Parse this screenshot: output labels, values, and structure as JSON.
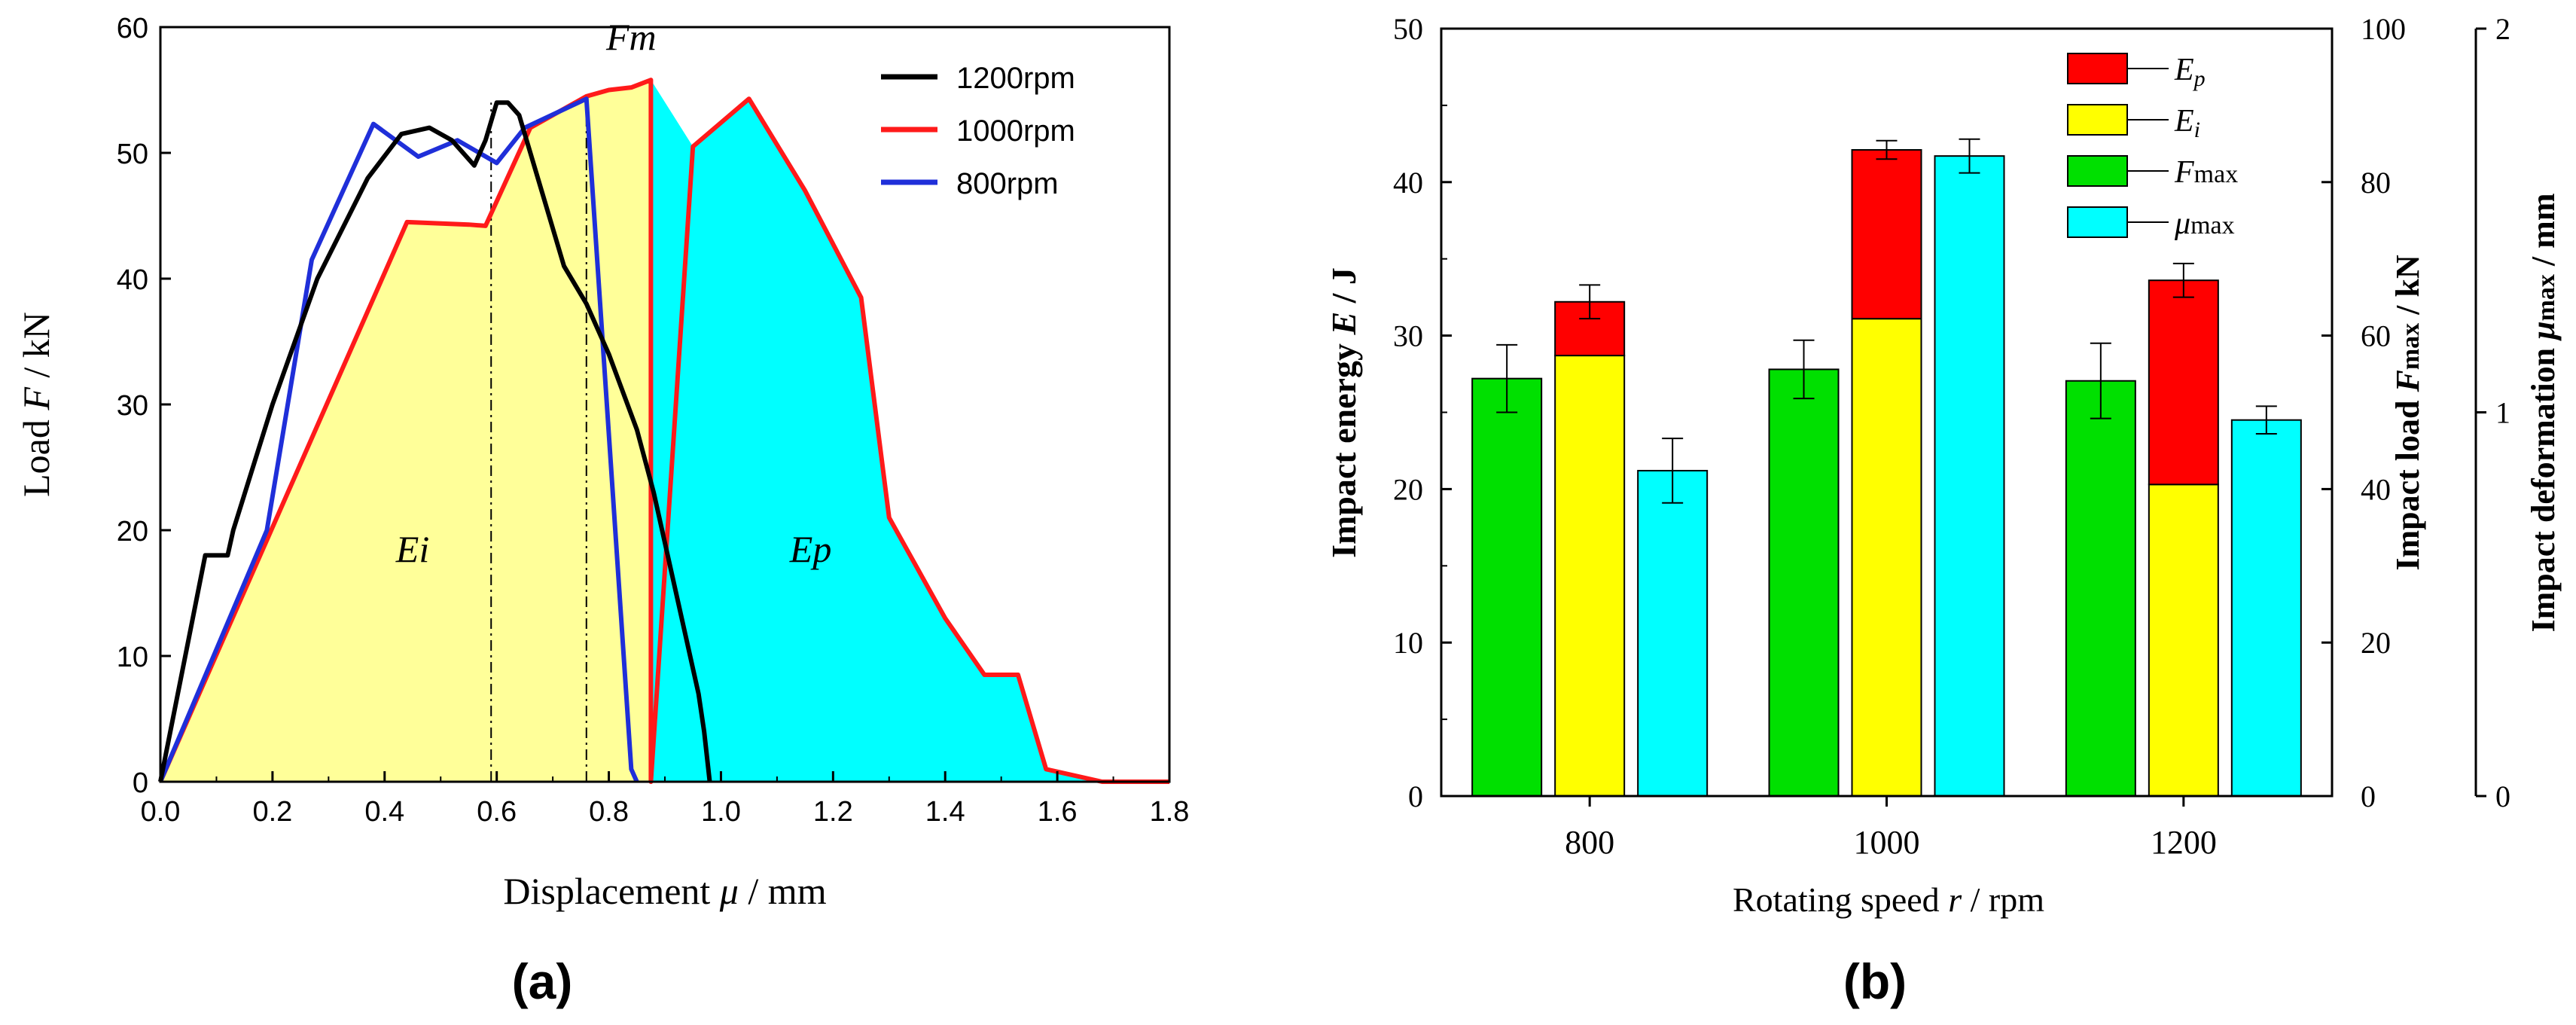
{
  "chart_data": [
    {
      "id": "a",
      "type": "line",
      "panel_label": "(a)",
      "xlabel_pre": "Displacement ",
      "xlabel_sym": "μ",
      "xlabel_post": " / mm",
      "ylabel_pre": "Load ",
      "ylabel_sym": "F",
      "ylabel_post": " / kN",
      "xlim": [
        0,
        1.8
      ],
      "ylim": [
        0,
        60
      ],
      "xticks": [
        "0.0",
        "0.2",
        "0.4",
        "0.6",
        "0.8",
        "1.0",
        "1.2",
        "1.4",
        "1.6",
        "1.8"
      ],
      "yticks": [
        "0",
        "10",
        "20",
        "30",
        "40",
        "50",
        "60"
      ],
      "legend_position": "top-right",
      "series": [
        {
          "name": "1200rpm",
          "color": "#000000",
          "x": [
            0,
            0.08,
            0.12,
            0.13,
            0.2,
            0.28,
            0.37,
            0.43,
            0.48,
            0.52,
            0.56,
            0.58,
            0.6,
            0.62,
            0.64,
            0.66,
            0.68,
            0.7,
            0.72,
            0.76,
            0.8,
            0.85,
            0.88,
            0.92,
            0.96,
            0.97,
            0.98
          ],
          "y": [
            0,
            18,
            18,
            20,
            30,
            40,
            48,
            51.5,
            52,
            51,
            49,
            51,
            54,
            54,
            53,
            50,
            47,
            44,
            41,
            38,
            34,
            28,
            23,
            15,
            7,
            4,
            0
          ]
        },
        {
          "name": "1000rpm",
          "color": "#ff1a1a",
          "x": [
            0,
            0.44,
            0.55,
            0.58,
            0.66,
            0.7,
            0.76,
            0.8,
            0.84,
            0.875,
            0.875,
            0.95,
            1.05,
            1.15,
            1.25,
            1.3,
            1.35,
            1.4,
            1.47,
            1.53,
            1.58,
            1.6,
            1.68,
            1.8
          ],
          "y": [
            0,
            44.5,
            44.3,
            44.2,
            52,
            53,
            54.5,
            55,
            55.2,
            55.8,
            0,
            50.5,
            54.3,
            47,
            38.5,
            21,
            17,
            13,
            8.5,
            8.5,
            1,
            0.8,
            0,
            0
          ]
        },
        {
          "name": "800rpm",
          "color": "#1f2fd9",
          "x": [
            0,
            0.19,
            0.27,
            0.38,
            0.46,
            0.53,
            0.6,
            0.65,
            0.76,
            0.84,
            0.85
          ],
          "y": [
            0,
            20,
            41.5,
            52.3,
            49.7,
            51,
            49.2,
            52,
            54.3,
            1,
            0
          ]
        }
      ],
      "fills": [
        {
          "name": "Ei",
          "color": "#ffff99",
          "x_range": [
            0,
            0.875
          ]
        },
        {
          "name": "Ep",
          "color": "#00ffff",
          "x_range": [
            0.875,
            1.68
          ]
        }
      ],
      "guides": [
        {
          "x": 0.59,
          "y_top": 54
        },
        {
          "x": 0.76,
          "y_top": 54.3
        },
        {
          "x": 0.875,
          "y_top": 55.8
        }
      ],
      "annotations": [
        {
          "text": "Fm",
          "x": 0.84,
          "y": 58.2
        },
        {
          "text": "Ei",
          "x": 0.45,
          "y": 17.5
        },
        {
          "text": "Ep",
          "x": 1.16,
          "y": 17.5
        }
      ]
    },
    {
      "id": "b",
      "type": "bar",
      "panel_label": "(b)",
      "xlabel_pre": "Rotating speed ",
      "xlabel_sym": "r",
      "xlabel_post": " / rpm",
      "categories": [
        "800",
        "1000",
        "1200"
      ],
      "legend_position": "top-right",
      "axes": {
        "energy": {
          "ylim": [
            0,
            50
          ],
          "ticks": [
            "0",
            "10",
            "20",
            "30",
            "40",
            "50"
          ],
          "label_pre": "Impact energy ",
          "label_sym": "E",
          "label_post": " /  J"
        },
        "load": {
          "ylim": [
            0,
            100
          ],
          "ticks": [
            "0",
            "20",
            "40",
            "60",
            "80",
            "100"
          ],
          "label_pre": "Impact load ",
          "label_sym": "F",
          "label_sub": "max",
          "label_post": " /  kN"
        },
        "deformation": {
          "ylim": [
            0,
            2
          ],
          "ticks": [
            "0",
            "1",
            "2"
          ],
          "label_pre": "Impact deformation ",
          "label_sym": "μ",
          "label_sub": "max",
          "label_post": " /  mm"
        }
      },
      "series": [
        {
          "name": "Ep",
          "legend_sym": "E",
          "legend_sub": "p",
          "color": "#ff0000",
          "axis": "energy",
          "stacked_on": "Ei",
          "values": [
            3.5,
            11.0,
            13.3
          ]
        },
        {
          "name": "Ei",
          "legend_sym": "E",
          "legend_sub": "i",
          "color": "#ffff00",
          "axis": "energy",
          "values": [
            28.7,
            31.1,
            20.3
          ]
        },
        {
          "name": "Fmax",
          "legend_sym": "F",
          "legend_sub": "max",
          "color": "#00e000",
          "axis": "load",
          "values": [
            54.4,
            55.6,
            54.1
          ]
        },
        {
          "name": "μmax",
          "legend_sym": "μ",
          "legend_sub": "max",
          "color": "#00ffff",
          "axis": "load",
          "values": [
            42.4,
            83.4,
            49.0
          ]
        }
      ],
      "error_bars": {
        "Fmax": [
          4.4,
          3.8,
          4.9
        ],
        "total_energy": [
          1.1,
          0.6,
          1.1
        ],
        "μmax": [
          4.2,
          2.2,
          1.8
        ]
      }
    }
  ]
}
